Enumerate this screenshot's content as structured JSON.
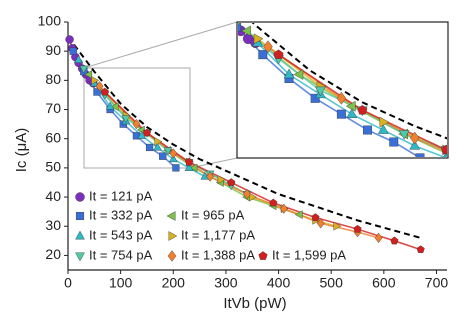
{
  "chart_data": {
    "type": "scatter",
    "x_label": "ItVb (pW)",
    "y_label": "Ic (μA)",
    "xlim": [
      0,
      720
    ],
    "ylim": [
      15,
      100
    ],
    "xticks": [
      0,
      100,
      200,
      300,
      400,
      500,
      600,
      700
    ],
    "yticks": [
      20,
      30,
      40,
      50,
      60,
      70,
      80,
      90,
      100
    ],
    "series": [
      {
        "name": "It = 121 pA",
        "color": "#7b2fbe",
        "marker": "circle",
        "x": [
          3,
          8,
          14,
          20,
          27,
          34,
          41,
          48
        ],
        "values": [
          94,
          91,
          88,
          86,
          84,
          82,
          80,
          79
        ]
      },
      {
        "name": "It = 332 pA",
        "color": "#3a6fd8",
        "marker": "square",
        "x": [
          10,
          30,
          55,
          80,
          105,
          130,
          155,
          180,
          205
        ],
        "values": [
          90,
          83,
          76,
          70,
          65,
          61,
          57,
          54,
          50
        ]
      },
      {
        "name": "It = 965 pA",
        "color": "#7cc24a",
        "marker": "triangle-left",
        "x": [
          40,
          90,
          140,
          190,
          240,
          290,
          340,
          390,
          440
        ],
        "values": [
          82,
          71,
          63,
          56,
          50,
          45,
          40,
          37,
          34
        ]
      },
      {
        "name": "It = 543 pA",
        "color": "#2fb8c8",
        "marker": "triangle-up",
        "x": [
          20,
          50,
          80,
          110,
          140,
          170,
          200,
          230,
          260
        ],
        "values": [
          87,
          79,
          71,
          66,
          61,
          57,
          53,
          50,
          47
        ]
      },
      {
        "name": "It = 1,177 pA",
        "color": "#d9b020",
        "marker": "triangle-right",
        "x": [
          50,
          110,
          170,
          230,
          290,
          350,
          410,
          470,
          510
        ],
        "values": [
          80,
          68,
          59,
          52,
          46,
          40,
          36,
          32,
          30
        ]
      },
      {
        "name": "It = 754 pA",
        "color": "#4fc9a8",
        "marker": "triangle-down",
        "x": [
          30,
          70,
          110,
          150,
          190,
          230,
          270,
          310,
          340
        ],
        "values": [
          84,
          75,
          67,
          62,
          56,
          52,
          48,
          44,
          41
        ]
      },
      {
        "name": "It = 1,388 pA",
        "color": "#f08030",
        "marker": "diamond",
        "x": [
          60,
          130,
          200,
          270,
          340,
          410,
          480,
          550,
          590
        ],
        "values": [
          78,
          65,
          55,
          47,
          41,
          36,
          31,
          28,
          26
        ]
      },
      {
        "name": "It = 1,599 pA",
        "color": "#d22020",
        "marker": "pentagon",
        "x": [
          70,
          150,
          230,
          310,
          390,
          470,
          550,
          620,
          670
        ],
        "values": [
          76,
          62,
          52,
          45,
          38,
          33,
          29,
          25,
          22
        ]
      }
    ],
    "reference_line": {
      "color": "#000000",
      "x": [
        0,
        50,
        100,
        150,
        200,
        250,
        300,
        350,
        400,
        450,
        500,
        550,
        600,
        650,
        670
      ],
      "values": [
        95,
        83,
        72,
        64,
        58,
        53,
        49,
        45,
        41,
        38,
        35,
        32,
        29.5,
        27,
        26
      ]
    }
  }
}
